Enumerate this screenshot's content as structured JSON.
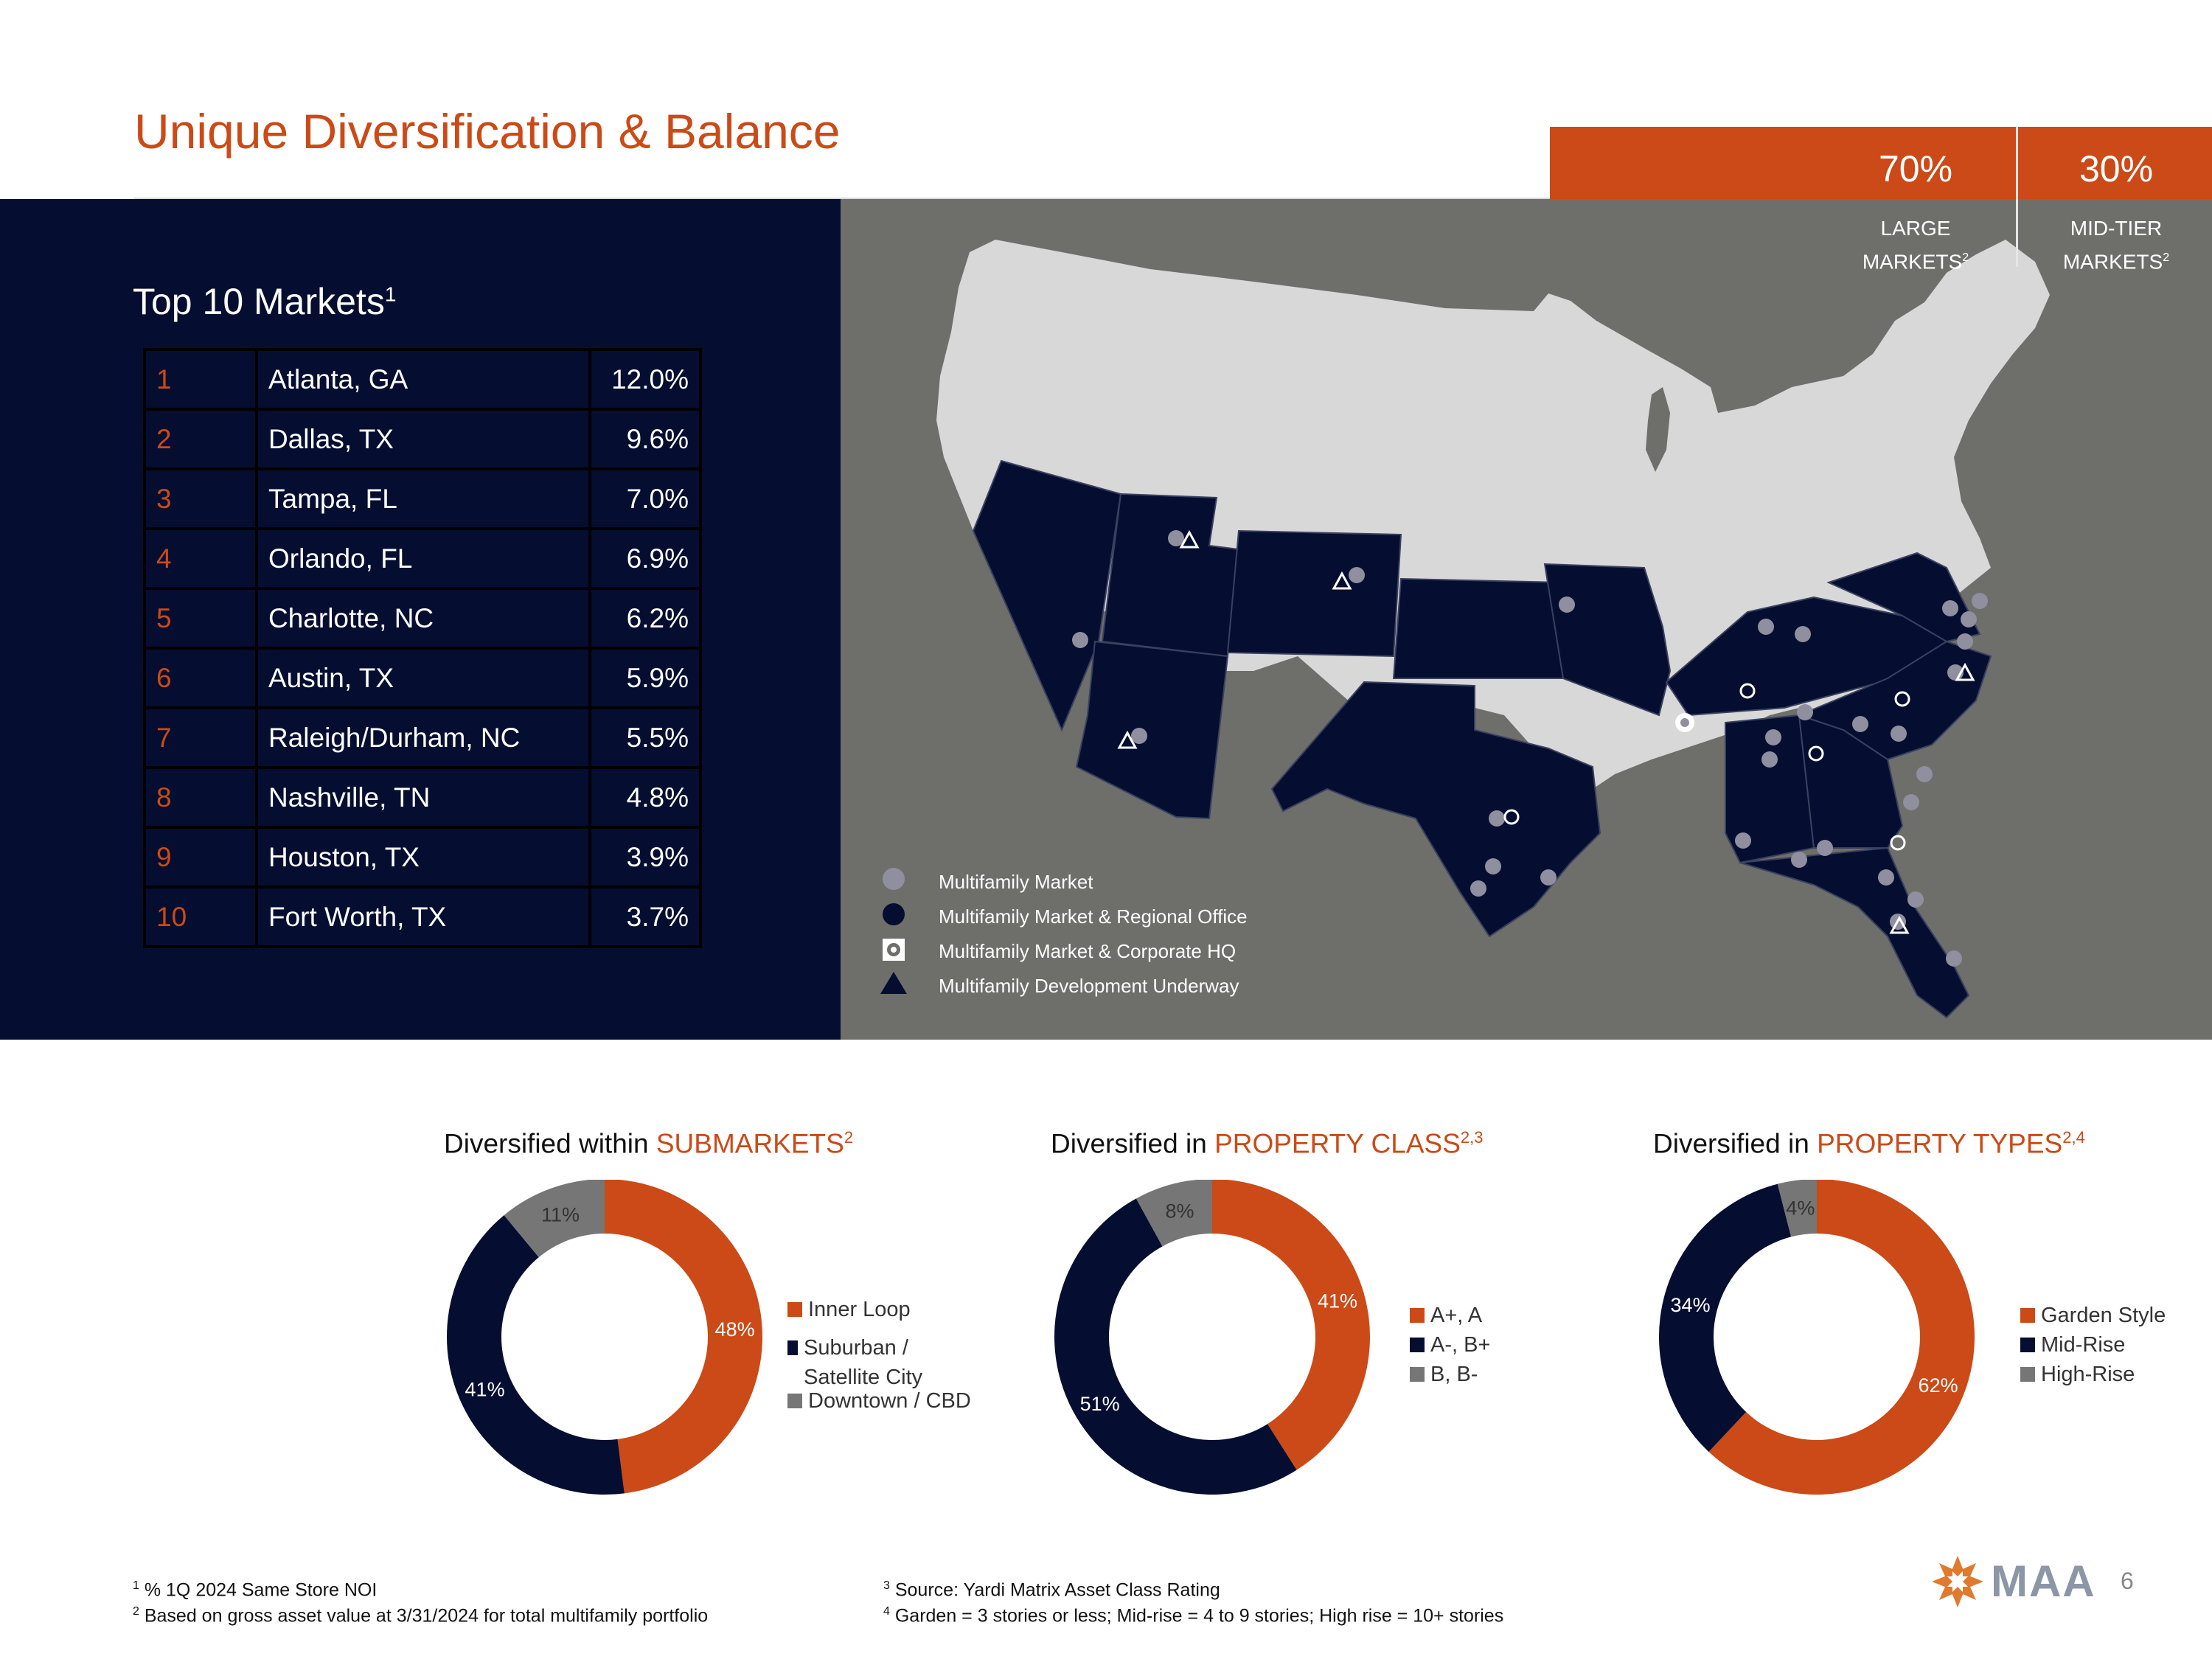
{
  "slide": {
    "title": "Unique Diversification & Balance",
    "page_number": "6",
    "logo_text": "MAA"
  },
  "header_stats": [
    {
      "percent": "70%",
      "label_line1": "LARGE",
      "label_line2": "MARKETS",
      "sup": "2"
    },
    {
      "percent": "30%",
      "label_line1": "MID-TIER",
      "label_line2": "MARKETS",
      "sup": "2"
    }
  ],
  "top_markets": {
    "title": "Top 10 Markets",
    "title_sup": "1",
    "rows": [
      {
        "rank": "1",
        "city": "Atlanta, GA",
        "pct": "12.0%"
      },
      {
        "rank": "2",
        "city": "Dallas, TX",
        "pct": "9.6%"
      },
      {
        "rank": "3",
        "city": "Tampa, FL",
        "pct": "7.0%"
      },
      {
        "rank": "4",
        "city": "Orlando, FL",
        "pct": "6.9%"
      },
      {
        "rank": "5",
        "city": "Charlotte, NC",
        "pct": "6.2%"
      },
      {
        "rank": "6",
        "city": "Austin, TX",
        "pct": "5.9%"
      },
      {
        "rank": "7",
        "city": "Raleigh/Durham, NC",
        "pct": "5.5%"
      },
      {
        "rank": "8",
        "city": "Nashville, TN",
        "pct": "4.8%"
      },
      {
        "rank": "9",
        "city": "Houston, TX",
        "pct": "3.9%"
      },
      {
        "rank": "10",
        "city": "Fort Worth, TX",
        "pct": "3.7%"
      }
    ]
  },
  "map_legend": [
    {
      "icon": "light-circle-icon",
      "label": "Multifamily Market"
    },
    {
      "icon": "dark-circle-icon",
      "label": "Multifamily Market & Regional Office"
    },
    {
      "icon": "corporate-hq-icon",
      "label": "Multifamily Market & Corporate HQ"
    },
    {
      "icon": "triangle-icon",
      "label": "Multifamily Development Underway"
    }
  ],
  "colors": {
    "orange": "#CB4A17",
    "navy": "#050E30",
    "gray": "#767676",
    "map_background": "#6E6F6B",
    "land": "#D8D8D8"
  },
  "chart_data": [
    {
      "type": "pie",
      "title_prefix": "Diversified within ",
      "title_highlight": "SUBMARKETS",
      "title_sup": "2",
      "categories": [
        "Inner Loop",
        "Suburban / Satellite City",
        "Downtown / CBD"
      ],
      "values": [
        48,
        41,
        11
      ],
      "labels": [
        "48%",
        "41%",
        "11%"
      ],
      "colors": [
        "#CB4A17",
        "#050E30",
        "#767676"
      ],
      "legend_position": "right"
    },
    {
      "type": "pie",
      "title_prefix": "Diversified in ",
      "title_highlight": "PROPERTY CLASS",
      "title_sup": "2,3",
      "categories": [
        "A+, A",
        "A-, B+",
        "B, B-"
      ],
      "values": [
        41,
        51,
        8
      ],
      "labels": [
        "41%",
        "51%",
        "8%"
      ],
      "colors": [
        "#CB4A17",
        "#050E30",
        "#767676"
      ],
      "legend_position": "right"
    },
    {
      "type": "pie",
      "title_prefix": "Diversified in ",
      "title_highlight": "PROPERTY TYPES",
      "title_sup": "2,4",
      "categories": [
        "Garden Style",
        "Mid-Rise",
        "High-Rise"
      ],
      "values": [
        62,
        34,
        4
      ],
      "labels": [
        "62%",
        "34%",
        "4%"
      ],
      "colors": [
        "#CB4A17",
        "#050E30",
        "#767676"
      ],
      "legend_position": "right"
    }
  ],
  "footnotes": {
    "left": [
      {
        "sup": "1",
        "text": " % 1Q 2024 Same Store NOI"
      },
      {
        "sup": "2",
        "text": " Based on gross asset value at 3/31/2024 for total multifamily portfolio"
      }
    ],
    "right": [
      {
        "sup": "3",
        "text": " Source: Yardi Matrix Asset Class Rating"
      },
      {
        "sup": "4",
        "text": " Garden = 3 stories or less; Mid-rise = 4 to 9 stories; High rise = 10+ stories"
      }
    ]
  }
}
